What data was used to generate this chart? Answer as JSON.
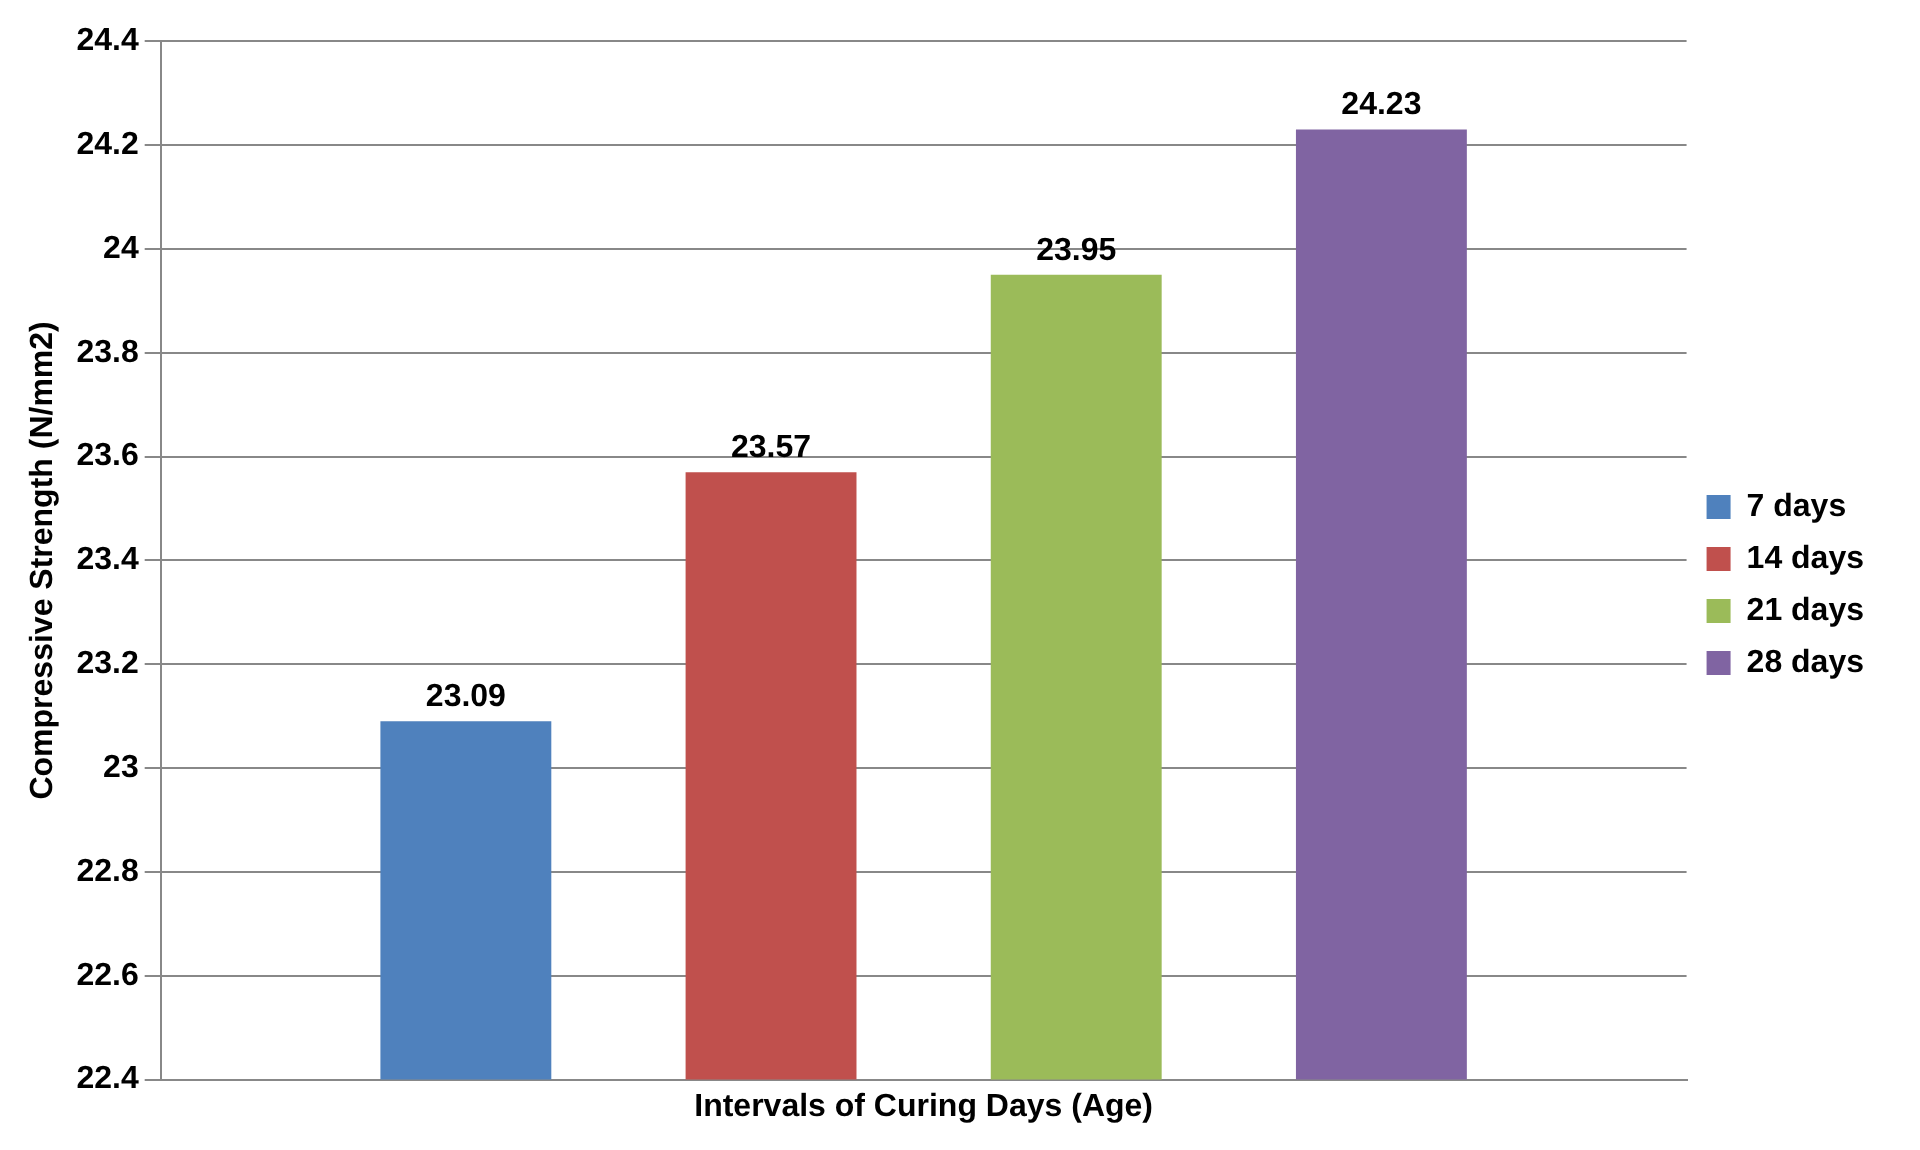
{
  "chart_data": {
    "type": "bar",
    "xlabel": "Intervals of Curing Days (Age)",
    "ylabel": "Compressive Strength (N/mm2)",
    "categories": [
      null
    ],
    "series": [
      {
        "name": "7 days",
        "color": "#4f81bd",
        "values": [
          23.09
        ]
      },
      {
        "name": "14 days",
        "color": "#c0504d",
        "values": [
          23.57
        ]
      },
      {
        "name": "21 days",
        "color": "#9bbb59",
        "values": [
          23.95
        ]
      },
      {
        "name": "28 days",
        "color": "#8064a2",
        "values": [
          24.23
        ]
      }
    ],
    "ylim": [
      22.4,
      24.4
    ],
    "yticks": [
      22.4,
      22.6,
      22.8,
      23,
      23.2,
      23.4,
      23.6,
      23.8,
      24,
      24.2,
      24.4
    ],
    "grid": "y",
    "legend": "right",
    "data_labels": true
  }
}
